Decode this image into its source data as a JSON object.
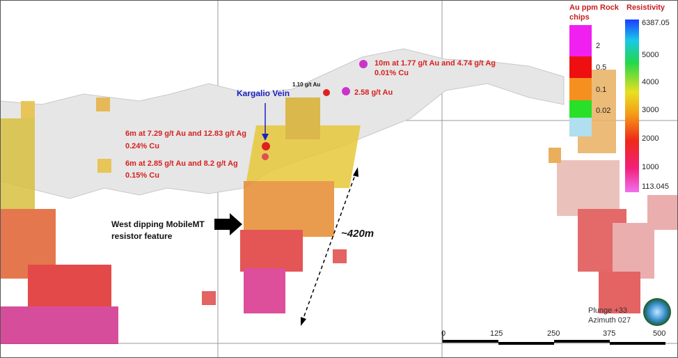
{
  "annotations": {
    "vein_label": "Kargalio Vein",
    "sample_1_line1": "10m at 1.77 g/t Au and 4.74 g/t Ag",
    "sample_1_line2": "0.01% Cu",
    "sample_2": "1.10 g/t Au",
    "sample_3": "2.58 g/t Au",
    "sample_4_line1": "6m at 7.29 g/t Au and 12.83 g/t Ag",
    "sample_4_line2": "0.24% Cu",
    "sample_5_line1": "6m at 2.85 g/t Au and 8.2 g/t Ag",
    "sample_5_line2": "0.15% Cu",
    "feature_line1": "West dipping MobileMT",
    "feature_line2": "resistor feature",
    "length": "~420m"
  },
  "au_legend": {
    "title_line1": "Au ppm Rock",
    "title_line2": "chips",
    "labels": [
      "2",
      "0.5",
      "0.1",
      "0.02"
    ]
  },
  "resistivity_legend": {
    "title": "Resistivity",
    "labels": [
      "6387.05",
      "5000",
      "4000",
      "3000",
      "2000",
      "1000",
      "113.045"
    ]
  },
  "view": {
    "plunge": "Plunge +33",
    "azimuth": "Azimuth 027"
  },
  "scale_bar": {
    "labels": [
      "0",
      "125",
      "250",
      "375",
      "500"
    ]
  }
}
